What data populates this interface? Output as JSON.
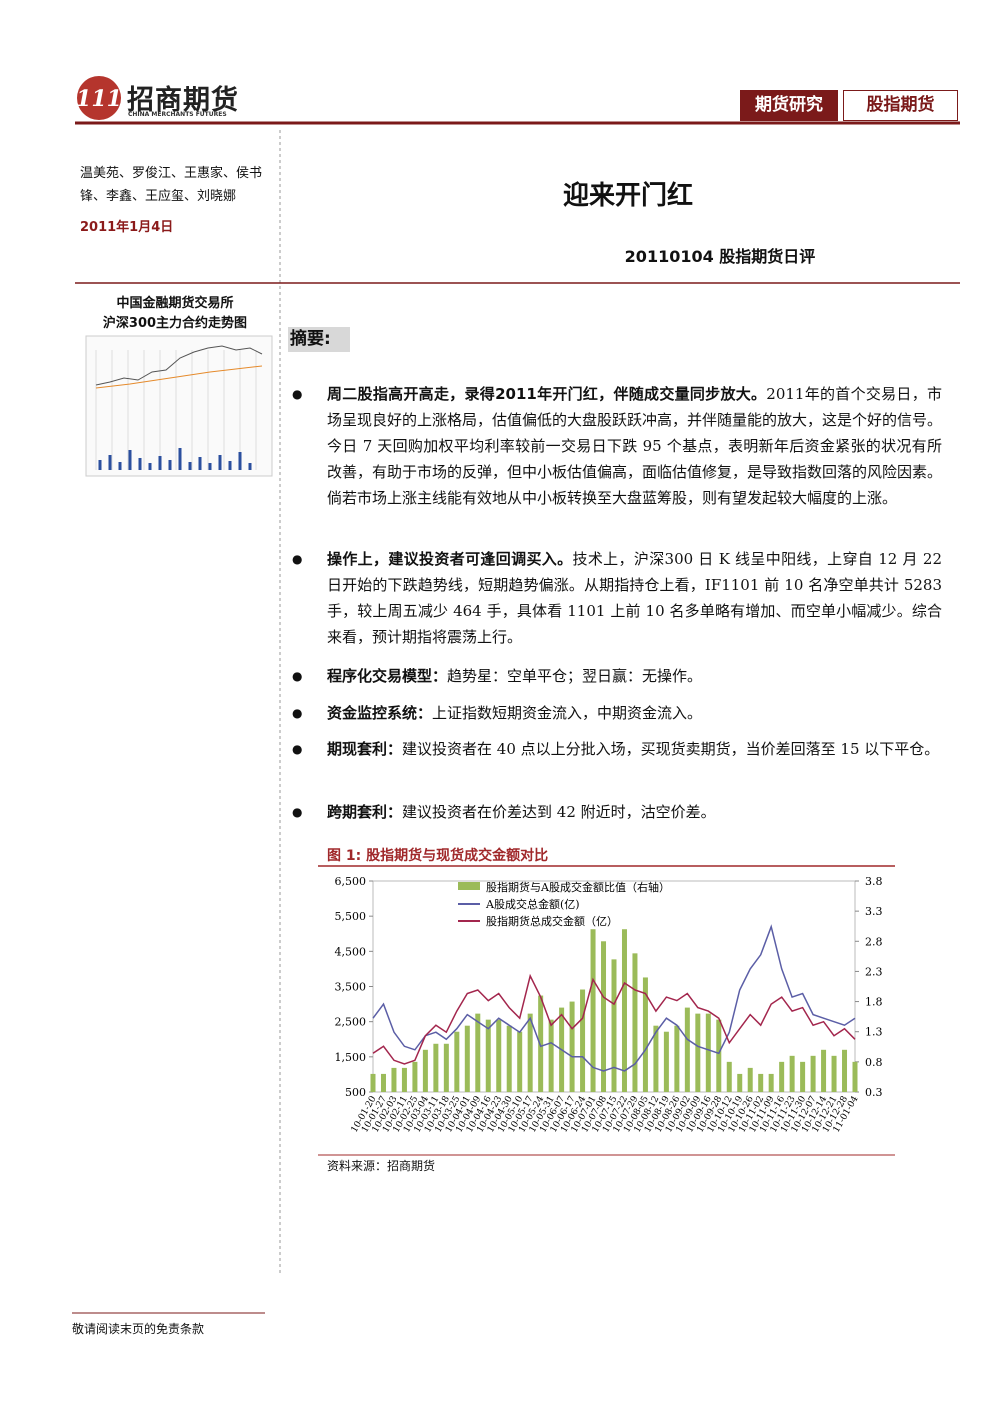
{
  "header": {
    "logo": "招商期货",
    "logo_en": "CHINA MERCHANTS FUTURES",
    "tags": [
      "期货研究",
      "股指期货"
    ]
  },
  "sidebar": {
    "authors": "温美苑、罗俊江、王惠家、侯书锋、李鑫、王应玺、刘晓娜",
    "date": "2011年1月4日",
    "thumb_caption": [
      "中国金融期货交易所",
      "沪深300主力合约走势图"
    ]
  },
  "title": "迎来开门红",
  "subtitle": "20110104 股指期货日评",
  "summary_label": "摘要:",
  "bullets": [
    {
      "lead": "周二股指高开高走，录得2011年开门红，伴随成交量同步放大。",
      "text": "2011年的首个交易日，市场呈现良好的上涨格局，估值偏低的大盘股跃跃冲高，并伴随量能的放大，这是个好的信号。今日 7 天回购加权平均利率较前一交易日下跌 95 个基点，表明新年后资金紧张的状况有所改善，有助于市场的反弹，但中小板估值偏高，面临估值修复，是导致指数回落的风险因素。倘若市场上涨主线能有效地从中小板转换至大盘蓝筹股，则有望发起较大幅度的上涨。"
    },
    {
      "lead": "操作上，建议投资者可逢回调买入。",
      "text": "技术上，沪深300 日 K 线呈中阳线，上穿自 12 月 22 日开始的下跌趋势线，短期趋势偏涨。从期指持仓上看，IF1101 前 10 名净空单共计 5283 手，较上周五减少 464 手，具体看 1101 上前 10 名多单略有增加、而空单小幅减少。综合来看，预计期指将震荡上行。"
    },
    {
      "lead": "程序化交易模型：",
      "text": "趋势星：空单平仓；翌日赢：无操作。"
    },
    {
      "lead": "资金监控系统：",
      "text": "上证指数短期资金流入，中期资金流入。"
    },
    {
      "lead": "期现套利：",
      "text": "建议投资者在 40 点以上分批入场，买现货卖期货，当价差回落至 15 以下平仓。"
    },
    {
      "lead": "跨期套利：",
      "text": "建议投资者在价差达到 42 附近时，沽空价差。"
    }
  ],
  "chart_data": {
    "type": "combo",
    "title": "图 1:  股指期货与现货成交金额对比",
    "source": "资料来源：招商期货",
    "x": [
      "10-01-20",
      "10-01-27",
      "10-02-03",
      "10-02-11",
      "10-02-25",
      "10-03-04",
      "10-03-11",
      "10-03-18",
      "10-03-25",
      "10-04-01",
      "10-04-09",
      "10-04-16",
      "10-04-23",
      "10-04-30",
      "10-05-10",
      "10-05-17",
      "10-05-24",
      "10-05-31",
      "10-06-07",
      "10-06-17",
      "10-06-24",
      "10-07-01",
      "10-07-08",
      "10-07-15",
      "10-07-22",
      "10-07-29",
      "10-08-05",
      "10-08-12",
      "10-08-19",
      "10-08-26",
      "10-09-02",
      "10-09-09",
      "10-09-16",
      "10-09-28",
      "10-10-12",
      "10-10-19",
      "10-10-26",
      "10-11-02",
      "10-11-09",
      "10-11-16",
      "10-11-23",
      "10-11-30",
      "10-12-07",
      "10-12-14",
      "10-12-21",
      "10-12-28",
      "11-01-04"
    ],
    "series": [
      {
        "name": "股指期货与A股成交金额比值（右轴）",
        "color": "#9bbb59",
        "axis": "y2",
        "kind": "bar",
        "values": [
          0.6,
          0.6,
          0.7,
          0.7,
          0.8,
          1.0,
          1.1,
          1.1,
          1.3,
          1.4,
          1.6,
          1.5,
          1.5,
          1.4,
          1.3,
          1.6,
          1.9,
          1.5,
          1.7,
          1.8,
          2.0,
          3.0,
          2.8,
          2.5,
          3.0,
          2.6,
          2.2,
          1.4,
          1.3,
          1.4,
          1.7,
          1.6,
          1.6,
          1.5,
          0.8,
          0.6,
          0.7,
          0.6,
          0.6,
          0.8,
          0.9,
          0.8,
          0.9,
          1.0,
          0.9,
          1.0,
          0.8
        ]
      },
      {
        "name": "A股成交总金额(亿)",
        "color": "#5b5ea6",
        "kind": "line",
        "values": [
          2600,
          3000,
          2200,
          1800,
          1700,
          2100,
          2200,
          2000,
          2300,
          2700,
          2500,
          2300,
          2600,
          2400,
          2200,
          2600,
          1800,
          1900,
          1700,
          1500,
          1500,
          1200,
          1100,
          1200,
          1100,
          1300,
          1700,
          2200,
          2600,
          2400,
          2000,
          1800,
          1700,
          1600,
          2200,
          3400,
          4000,
          4400,
          5200,
          4000,
          3200,
          3300,
          2700,
          2600,
          2500,
          2400,
          2600
        ]
      },
      {
        "name": "股指期货总成交金额（亿）",
        "color": "#a3264d",
        "kind": "line",
        "values": [
          1600,
          1800,
          1400,
          1300,
          1400,
          2100,
          2400,
          2200,
          2800,
          3300,
          3400,
          3100,
          3300,
          2900,
          2600,
          3800,
          3200,
          2400,
          2700,
          2300,
          2600,
          3700,
          3200,
          3000,
          3600,
          3400,
          3300,
          2800,
          3200,
          3100,
          3300,
          2900,
          2800,
          2600,
          1900,
          2300,
          2700,
          2400,
          3000,
          3200,
          2800,
          2900,
          2400,
          2500,
          2100,
          2300,
          2000
        ]
      }
    ],
    "ylim": [
      500,
      6500
    ],
    "yticks": [
      500,
      {
        "value": 1500,
        "label": "1,500"
      },
      {
        "value": 2500,
        "label": "2,500"
      },
      {
        "value": 3500,
        "label": "3,500"
      },
      {
        "value": 4500,
        "label": "4,500"
      },
      {
        "value": 5500,
        "label": "5,500"
      },
      {
        "value": 6500,
        "label": "6,500"
      }
    ],
    "y2lim": [
      0.3,
      3.8
    ],
    "y2ticks": [
      0.3,
      0.8,
      1.3,
      1.8,
      2.3,
      2.8,
      3.3,
      3.8
    ]
  },
  "footer": "敬请阅读末页的免责条款"
}
